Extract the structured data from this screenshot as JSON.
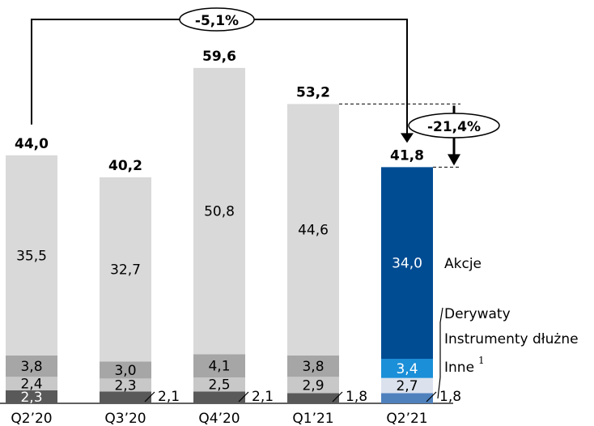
{
  "chart_data": {
    "type": "bar",
    "stacked": true,
    "categories": [
      "Q2'20",
      "Q3'20",
      "Q4'20",
      "Q1'21",
      "Q2'21"
    ],
    "category_labels": [
      "Q2’20",
      "Q3’20",
      "Q4’20",
      "Q1’21",
      "Q2’21"
    ],
    "totals": [
      "44,0",
      "40,2",
      "59,6",
      "53,2",
      "41,8"
    ],
    "total_values": [
      44.0,
      40.2,
      59.6,
      53.2,
      41.8
    ],
    "series": [
      {
        "name": "Inne",
        "label_ref": "1",
        "values": [
          2.3,
          2.1,
          2.1,
          1.8,
          1.8
        ],
        "labels": [
          "2,3",
          "2,1",
          "2,1",
          "1,8",
          "1,8"
        ],
        "colors": [
          "#595959",
          "#595959",
          "#595959",
          "#595959",
          "#4f81bd"
        ]
      },
      {
        "name": "Instrumenty dłużne",
        "values": [
          2.4,
          2.3,
          2.5,
          2.9,
          2.7
        ],
        "labels": [
          "2,4",
          "2,3",
          "2,5",
          "2,9",
          "2,7"
        ],
        "colors": [
          "#c8c8c8",
          "#c8c8c8",
          "#c8c8c8",
          "#c8c8c8",
          "#dbe2ee"
        ]
      },
      {
        "name": "Derywaty",
        "values": [
          3.8,
          3.0,
          4.1,
          3.8,
          3.4
        ],
        "labels": [
          "3,8",
          "3,0",
          "4,1",
          "3,8",
          "3,4"
        ],
        "colors": [
          "#a6a6a6",
          "#a6a6a6",
          "#a6a6a6",
          "#a6a6a6",
          "#1b8fd8"
        ]
      },
      {
        "name": "Akcje",
        "values": [
          35.5,
          32.7,
          50.8,
          44.6,
          34.0
        ],
        "labels": [
          "35,5",
          "32,7",
          "50,8",
          "44,6",
          "34,0"
        ],
        "colors": [
          "#d9d9d9",
          "#d9d9d9",
          "#d9d9d9",
          "#d9d9d9",
          "#004c93"
        ]
      }
    ],
    "annotations": {
      "yoy_change": "-5,1%",
      "qoq_change": "-21,4%"
    },
    "legend": {
      "akcje": "Akcje",
      "derywaty": "Derywaty",
      "instrumenty": "Instrumenty dłużne",
      "inne": "Inne",
      "inne_note": "1"
    },
    "ylim": [
      0,
      62
    ]
  }
}
